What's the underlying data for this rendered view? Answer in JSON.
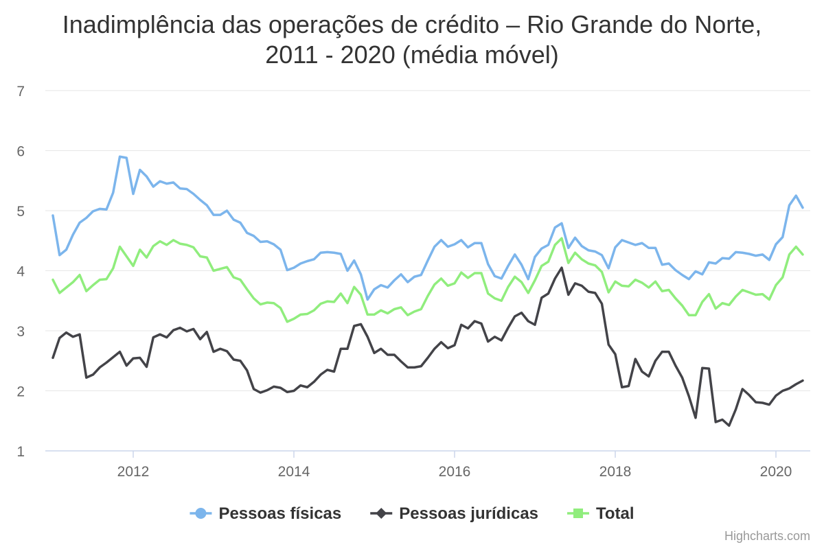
{
  "chart_data": {
    "type": "line",
    "title_line1": "Inadimplência das operações de crédito – Rio Grande do Norte,",
    "title_line2": "2011 - 2020 (média móvel)",
    "xlabel": "",
    "ylabel": "",
    "x_start": "2011-01",
    "x_end": "2020-05",
    "ylim": [
      1,
      7
    ],
    "y_ticks": [
      "1",
      "2",
      "3",
      "4",
      "5",
      "6",
      "7"
    ],
    "x_ticks": [
      "2012",
      "2014",
      "2016",
      "2018",
      "2020"
    ],
    "grid": true,
    "legend_position": "bottom-center",
    "credits": "Highcharts.com",
    "series": [
      {
        "name": "Pessoas físicas",
        "color": "#7cb5ec",
        "marker": "circle",
        "values": [
          4.92,
          4.26,
          4.35,
          4.6,
          4.8,
          4.88,
          4.99,
          5.03,
          5.02,
          5.3,
          5.9,
          5.88,
          5.28,
          5.68,
          5.57,
          5.4,
          5.49,
          5.45,
          5.47,
          5.37,
          5.36,
          5.28,
          5.18,
          5.09,
          4.93,
          4.93,
          5.0,
          4.85,
          4.8,
          4.63,
          4.58,
          4.48,
          4.49,
          4.44,
          4.35,
          4.01,
          4.05,
          4.12,
          4.16,
          4.19,
          4.3,
          4.31,
          4.3,
          4.28,
          4.0,
          4.17,
          3.94,
          3.52,
          3.69,
          3.76,
          3.72,
          3.84,
          3.94,
          3.81,
          3.9,
          3.93,
          4.17,
          4.4,
          4.51,
          4.4,
          4.44,
          4.51,
          4.39,
          4.46,
          4.46,
          4.11,
          3.91,
          3.87,
          4.08,
          4.27,
          4.1,
          3.86,
          4.23,
          4.37,
          4.43,
          4.72,
          4.79,
          4.38,
          4.55,
          4.41,
          4.34,
          4.32,
          4.26,
          4.04,
          4.39,
          4.51,
          4.47,
          4.43,
          4.46,
          4.38,
          4.38,
          4.1,
          4.12,
          4.01,
          3.93,
          3.86,
          3.99,
          3.94,
          4.14,
          4.12,
          4.21,
          4.2,
          4.31,
          4.3,
          4.28,
          4.25,
          4.27,
          4.18,
          4.44,
          4.56,
          5.09,
          5.25,
          5.05
        ]
      },
      {
        "name": "Pessoas jurídicas",
        "color": "#434348",
        "marker": "diamond",
        "values": [
          2.55,
          2.88,
          2.97,
          2.9,
          2.94,
          2.22,
          2.27,
          2.39,
          2.47,
          2.56,
          2.65,
          2.42,
          2.54,
          2.55,
          2.4,
          2.89,
          2.94,
          2.89,
          3.01,
          3.05,
          2.99,
          3.03,
          2.86,
          2.98,
          2.65,
          2.7,
          2.66,
          2.52,
          2.5,
          2.34,
          2.03,
          1.97,
          2.01,
          2.07,
          2.05,
          1.98,
          2.0,
          2.09,
          2.06,
          2.15,
          2.27,
          2.35,
          2.32,
          2.7,
          2.7,
          3.08,
          3.11,
          2.9,
          2.63,
          2.7,
          2.6,
          2.6,
          2.49,
          2.39,
          2.39,
          2.41,
          2.55,
          2.7,
          2.81,
          2.71,
          2.76,
          3.1,
          3.04,
          3.16,
          3.12,
          2.82,
          2.9,
          2.84,
          3.05,
          3.24,
          3.3,
          3.16,
          3.1,
          3.55,
          3.62,
          3.87,
          4.05,
          3.6,
          3.79,
          3.75,
          3.65,
          3.63,
          3.45,
          2.77,
          2.61,
          2.06,
          2.08,
          2.53,
          2.32,
          2.24,
          2.5,
          2.65,
          2.65,
          2.42,
          2.22,
          1.91,
          1.55,
          2.38,
          2.37,
          1.48,
          1.52,
          1.42,
          1.69,
          2.03,
          1.93,
          1.81,
          1.8,
          1.77,
          1.92,
          2.0,
          2.04,
          2.11,
          2.17
        ]
      },
      {
        "name": "Total",
        "color": "#90ed7d",
        "marker": "square",
        "values": [
          3.85,
          3.63,
          3.72,
          3.81,
          3.93,
          3.66,
          3.76,
          3.85,
          3.86,
          4.04,
          4.4,
          4.24,
          4.08,
          4.35,
          4.22,
          4.41,
          4.49,
          4.43,
          4.51,
          4.45,
          4.43,
          4.39,
          4.24,
          4.22,
          4.0,
          4.03,
          4.06,
          3.89,
          3.85,
          3.69,
          3.54,
          3.44,
          3.47,
          3.46,
          3.38,
          3.15,
          3.2,
          3.27,
          3.28,
          3.34,
          3.45,
          3.49,
          3.48,
          3.62,
          3.46,
          3.73,
          3.6,
          3.27,
          3.27,
          3.34,
          3.29,
          3.36,
          3.39,
          3.26,
          3.32,
          3.36,
          3.58,
          3.77,
          3.87,
          3.75,
          3.79,
          3.97,
          3.88,
          3.96,
          3.96,
          3.62,
          3.54,
          3.5,
          3.73,
          3.9,
          3.81,
          3.63,
          3.84,
          4.08,
          4.15,
          4.43,
          4.54,
          4.13,
          4.3,
          4.19,
          4.12,
          4.09,
          3.98,
          3.64,
          3.82,
          3.75,
          3.74,
          3.85,
          3.8,
          3.72,
          3.82,
          3.66,
          3.68,
          3.54,
          3.42,
          3.26,
          3.26,
          3.48,
          3.61,
          3.37,
          3.46,
          3.43,
          3.57,
          3.68,
          3.64,
          3.6,
          3.61,
          3.52,
          3.76,
          3.89,
          4.27,
          4.4,
          4.27
        ]
      }
    ]
  }
}
